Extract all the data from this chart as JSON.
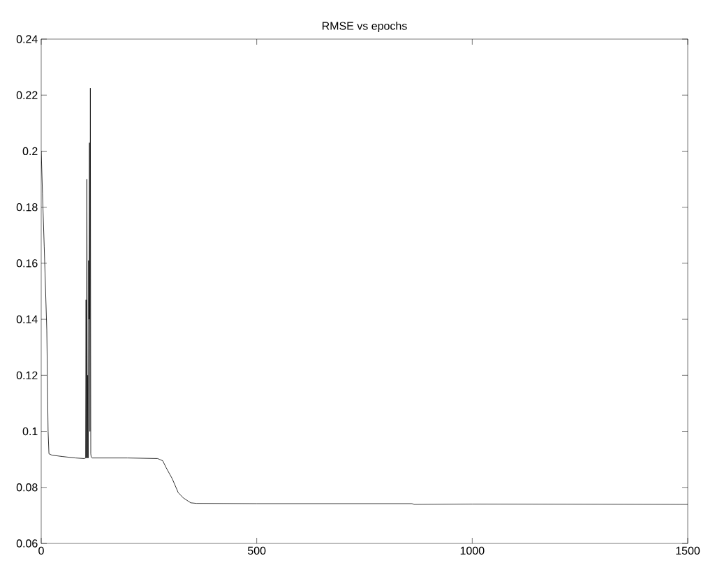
{
  "chart_data": {
    "type": "line",
    "title": "RMSE vs epochs",
    "x": [
      0,
      3,
      7,
      13,
      16,
      18,
      25,
      50,
      80,
      100,
      103,
      104,
      105,
      106,
      107,
      108,
      109,
      110,
      111,
      112,
      113,
      114,
      115,
      116,
      118,
      130,
      200,
      270,
      282,
      290,
      304,
      318,
      330,
      347,
      360,
      500,
      860,
      865,
      1000,
      1500
    ],
    "values": [
      0.2,
      0.185,
      0.166,
      0.136,
      0.1,
      0.092,
      0.0915,
      0.091,
      0.0905,
      0.0903,
      0.0905,
      0.147,
      0.0905,
      0.19,
      0.0905,
      0.12,
      0.0905,
      0.161,
      0.14,
      0.203,
      0.1,
      0.2225,
      0.092,
      0.0908,
      0.0905,
      0.0905,
      0.0905,
      0.0903,
      0.0895,
      0.087,
      0.0831,
      0.0781,
      0.0762,
      0.0745,
      0.0743,
      0.0742,
      0.0742,
      0.0739,
      0.074,
      0.0739
    ],
    "color": "#000000",
    "xlim": [
      0,
      1500
    ],
    "xticks": [
      0,
      500,
      1000,
      1500
    ],
    "ylim": [
      0.06,
      0.24
    ],
    "yticks": [
      0.06,
      0.08,
      0.1,
      0.12,
      0.14,
      0.16,
      0.18,
      0.2,
      0.22,
      0.24
    ],
    "grid": false,
    "marker": "none",
    "line_style": "solid"
  }
}
